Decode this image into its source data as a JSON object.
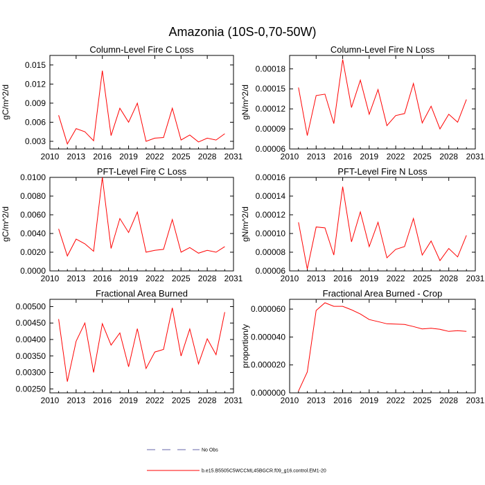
{
  "figure": {
    "title": "Amazonia (10S-0,70-50W)",
    "legend": [
      {
        "label": "No Obs",
        "color": "#6666aa",
        "dash": true
      },
      {
        "label": "b.e15.B5505C5WCCML45BGCR.f09_g16.control.EM1-20",
        "color": "#ff0000",
        "dash": false
      }
    ]
  },
  "chart_data": [
    {
      "type": "line",
      "title": "Column-Level Fire C Loss",
      "ylabel": "gC/m^2/d",
      "xlabel": "",
      "xlim": [
        2010,
        2031
      ],
      "ylim": [
        0.0018,
        0.0165
      ],
      "xticks": [
        2010,
        2013,
        2016,
        2019,
        2022,
        2025,
        2028,
        2031
      ],
      "yticks": [
        0.003,
        0.006,
        0.009,
        0.012,
        0.015
      ],
      "ytick_labels": [
        "0.003",
        "0.006",
        "0.009",
        "0.012",
        "0.015"
      ],
      "series": [
        {
          "name": "b.e15.B5505C5WCCML45BGCR.f09_g16.control.EM1-20",
          "color": "#ff0000",
          "x": [
            2011,
            2012,
            2013,
            2014,
            2015,
            2016,
            2017,
            2018,
            2019,
            2020,
            2021,
            2022,
            2023,
            2024,
            2025,
            2026,
            2027,
            2028,
            2029,
            2030
          ],
          "y": [
            0.0071,
            0.0026,
            0.005,
            0.0045,
            0.0031,
            0.0141,
            0.0039,
            0.0082,
            0.006,
            0.009,
            0.003,
            0.0035,
            0.0036,
            0.0082,
            0.0032,
            0.004,
            0.0029,
            0.0035,
            0.0032,
            0.0042
          ]
        }
      ]
    },
    {
      "type": "line",
      "title": "Column-Level Fire N Loss",
      "ylabel": "gN/m^2/d",
      "xlabel": "",
      "xlim": [
        2010,
        2031
      ],
      "ylim": [
        6e-05,
        0.0002
      ],
      "xticks": [
        2010,
        2013,
        2016,
        2019,
        2022,
        2025,
        2028,
        2031
      ],
      "yticks": [
        6e-05,
        9e-05,
        0.00012,
        0.00015,
        0.00018
      ],
      "ytick_labels": [
        "0.00006",
        "0.00009",
        "0.00012",
        "0.00015",
        "0.00018"
      ],
      "series": [
        {
          "name": "b.e15.B5505C5WCCML45BGCR.f09_g16.control.EM1-20",
          "color": "#ff0000",
          "x": [
            2011,
            2012,
            2013,
            2014,
            2015,
            2016,
            2017,
            2018,
            2019,
            2020,
            2021,
            2022,
            2023,
            2024,
            2025,
            2026,
            2027,
            2028,
            2029,
            2030
          ],
          "y": [
            0.000152,
            8e-05,
            0.00014,
            0.000142,
            9.8e-05,
            0.000194,
            0.000122,
            0.000163,
            0.000112,
            0.000149,
            9.5e-05,
            0.00011,
            0.000113,
            0.000158,
            9.9e-05,
            0.000124,
            9e-05,
            0.000112,
            0.0001,
            0.000134
          ]
        }
      ]
    },
    {
      "type": "line",
      "title": "PFT-Level Fire C Loss",
      "ylabel": "gC/m^2/d",
      "xlabel": "",
      "xlim": [
        2010,
        2031
      ],
      "ylim": [
        0.0,
        0.01
      ],
      "xticks": [
        2010,
        2013,
        2016,
        2019,
        2022,
        2025,
        2028,
        2031
      ],
      "yticks": [
        0.0,
        0.002,
        0.004,
        0.006,
        0.008,
        0.01
      ],
      "ytick_labels": [
        "0.0000",
        "0.0020",
        "0.0040",
        "0.0060",
        "0.0080",
        "0.0100"
      ],
      "series": [
        {
          "name": "b.e15.B5505C5WCCML45BGCR.f09_g16.control.EM1-20",
          "color": "#ff0000",
          "x": [
            2011,
            2012,
            2013,
            2014,
            2015,
            2016,
            2017,
            2018,
            2019,
            2020,
            2021,
            2022,
            2023,
            2024,
            2025,
            2026,
            2027,
            2028,
            2029,
            2030
          ],
          "y": [
            0.0045,
            0.0016,
            0.0034,
            0.0029,
            0.0021,
            0.01,
            0.0024,
            0.0056,
            0.0041,
            0.0063,
            0.002,
            0.0022,
            0.0023,
            0.0055,
            0.002,
            0.0025,
            0.0019,
            0.0022,
            0.002,
            0.0026
          ]
        }
      ]
    },
    {
      "type": "line",
      "title": "PFT-Level Fire N Loss",
      "ylabel": "gN/m^2/d",
      "xlabel": "",
      "xlim": [
        2010,
        2031
      ],
      "ylim": [
        6e-05,
        0.00016
      ],
      "xticks": [
        2010,
        2013,
        2016,
        2019,
        2022,
        2025,
        2028,
        2031
      ],
      "yticks": [
        6e-05,
        8e-05,
        0.0001,
        0.00012,
        0.00014,
        0.00016
      ],
      "ytick_labels": [
        "0.00006",
        "0.00008",
        "0.00010",
        "0.00012",
        "0.00014",
        "0.00016"
      ],
      "series": [
        {
          "name": "b.e15.B5505C5WCCML45BGCR.f09_g16.control.EM1-20",
          "color": "#ff0000",
          "x": [
            2011,
            2012,
            2013,
            2014,
            2015,
            2016,
            2017,
            2018,
            2019,
            2020,
            2021,
            2022,
            2023,
            2024,
            2025,
            2026,
            2027,
            2028,
            2029,
            2030
          ],
          "y": [
            0.000112,
            6.2e-05,
            0.000107,
            0.000106,
            7.7e-05,
            0.00015,
            9.1e-05,
            0.000123,
            8.6e-05,
            0.000112,
            7.4e-05,
            8.3e-05,
            8.6e-05,
            0.000116,
            7.7e-05,
            9.2e-05,
            7.1e-05,
            8.4e-05,
            7.5e-05,
            9.8e-05
          ]
        }
      ]
    },
    {
      "type": "line",
      "title": "Fractional Area Burned",
      "ylabel": "",
      "xlabel": "",
      "xlim": [
        2010,
        2031
      ],
      "ylim": [
        0.00238,
        0.00522
      ],
      "xticks": [
        2010,
        2013,
        2016,
        2019,
        2022,
        2025,
        2028,
        2031
      ],
      "yticks": [
        0.0025,
        0.003,
        0.0035,
        0.004,
        0.0045,
        0.005
      ],
      "ytick_labels": [
        "0.00250",
        "0.00300",
        "0.00350",
        "0.00400",
        "0.00450",
        "0.00500"
      ],
      "series": [
        {
          "name": "b.e15.B5505C5WCCML45BGCR.f09_g16.control.EM1-20",
          "color": "#ff0000",
          "x": [
            2011,
            2012,
            2013,
            2014,
            2015,
            2016,
            2017,
            2018,
            2019,
            2020,
            2021,
            2022,
            2023,
            2024,
            2025,
            2026,
            2027,
            2028,
            2029,
            2030
          ],
          "y": [
            0.00462,
            0.00272,
            0.00395,
            0.0045,
            0.003,
            0.00448,
            0.00383,
            0.0042,
            0.00317,
            0.00433,
            0.00312,
            0.00362,
            0.0037,
            0.00496,
            0.0035,
            0.00432,
            0.00326,
            0.00402,
            0.00354,
            0.00483
          ]
        }
      ]
    },
    {
      "type": "line",
      "title": "Fractional Area Burned - Crop",
      "ylabel": "proportion/y",
      "xlabel": "",
      "xlim": [
        2010,
        2031
      ],
      "ylim": [
        0.0,
        6.7e-05
      ],
      "xticks": [
        2010,
        2013,
        2016,
        2019,
        2022,
        2025,
        2028,
        2031
      ],
      "yticks": [
        0.0,
        2e-05,
        4e-05,
        6e-05
      ],
      "ytick_labels": [
        "0.000000",
        "0.000020",
        "0.000040",
        "0.000060"
      ],
      "series": [
        {
          "name": "b.e15.B5505C5WCCML45BGCR.f09_g16.control.EM1-20",
          "color": "#ff0000",
          "x": [
            2011,
            2012,
            2013,
            2014,
            2015,
            2016,
            2017,
            2018,
            2019,
            2020,
            2021,
            2022,
            2023,
            2024,
            2025,
            2026,
            2027,
            2028,
            2029,
            2030
          ],
          "y": [
            1.3e-06,
            1.5e-05,
            5.9e-05,
            6.45e-05,
            6.2e-05,
            6.2e-05,
            5.95e-05,
            5.65e-05,
            5.25e-05,
            5.1e-05,
            4.95e-05,
            4.93e-05,
            4.9e-05,
            4.75e-05,
            4.58e-05,
            4.63e-05,
            4.55e-05,
            4.4e-05,
            4.45e-05,
            4.4e-05
          ]
        }
      ]
    }
  ]
}
